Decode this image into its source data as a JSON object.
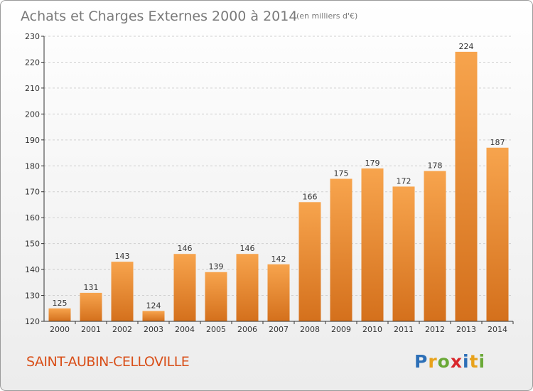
{
  "title": "Achats et Charges Externes 2000 à 2014",
  "subtitle": "(en milliers d'€)",
  "commune": "SAINT-AUBIN-CELLOVILLE",
  "logo": {
    "text": "Proxiti",
    "letters": [
      {
        "char": "P",
        "color": "#2c6fb7"
      },
      {
        "char": "r",
        "color": "#e8a21b"
      },
      {
        "char": "o",
        "color": "#6aa937"
      },
      {
        "char": "x",
        "color": "#d9262b"
      },
      {
        "char": "i",
        "color": "#2c6fb7"
      },
      {
        "char": "t",
        "color": "#e8a21b"
      },
      {
        "char": "i",
        "color": "#6aa937"
      }
    ]
  },
  "colors": {
    "bar_top": "#f7a44d",
    "bar_bottom": "#d4701c",
    "commune": "#d9501a",
    "axis": "#333333",
    "grid": "#d0d0d0"
  },
  "chart_data": {
    "type": "bar",
    "title": "Achats et Charges Externes 2000 à 2014",
    "subtitle": "(en milliers d'€)",
    "categories": [
      "2000",
      "2001",
      "2002",
      "2003",
      "2004",
      "2005",
      "2006",
      "2007",
      "2008",
      "2009",
      "2010",
      "2011",
      "2012",
      "2013",
      "2014"
    ],
    "values": [
      125,
      131,
      143,
      124,
      146,
      139,
      146,
      142,
      166,
      175,
      179,
      172,
      178,
      224,
      187
    ],
    "ylim": [
      120,
      230
    ],
    "yticks": [
      120,
      130,
      140,
      150,
      160,
      170,
      180,
      190,
      200,
      210,
      220,
      230
    ],
    "grid": "horizontal, dashed",
    "legend": "none"
  }
}
